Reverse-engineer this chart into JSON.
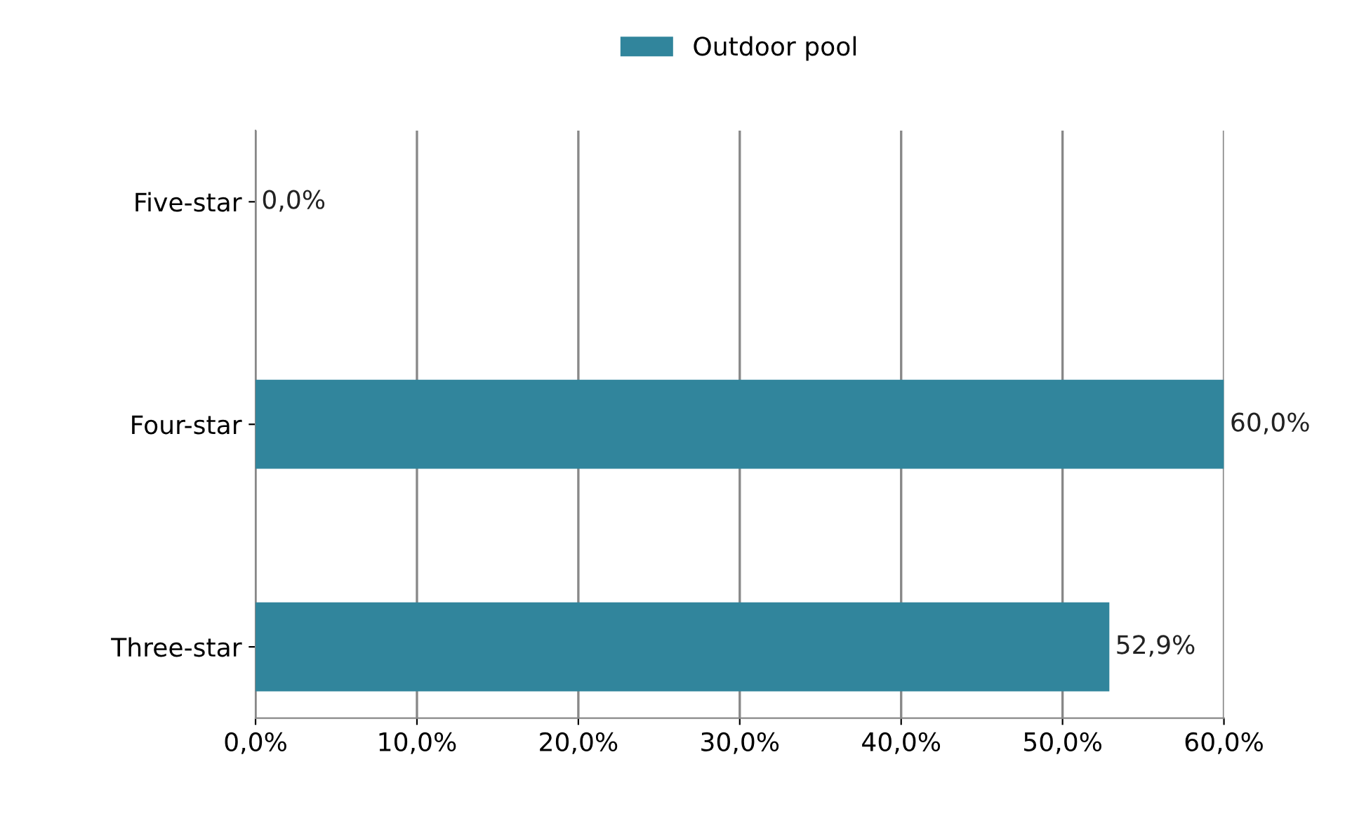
{
  "chart_data": {
    "type": "bar",
    "orientation": "horizontal",
    "categories": [
      "Five-star",
      "Four-star",
      "Three-star"
    ],
    "series": [
      {
        "name": "Outdoor pool",
        "color": "#31859c",
        "values": [
          0,
          60,
          52.9
        ],
        "value_labels": [
          "0,0%",
          "60,0%",
          "52,9%"
        ]
      }
    ],
    "xlim": [
      0,
      60
    ],
    "xticks": [
      {
        "value": 0,
        "label": "0,0%"
      },
      {
        "value": 10,
        "label": "10,0%"
      },
      {
        "value": 20,
        "label": "20,0%"
      },
      {
        "value": 30,
        "label": "30,0%"
      },
      {
        "value": 40,
        "label": "40,0%"
      },
      {
        "value": 50,
        "label": "50,0%"
      },
      {
        "value": 60,
        "label": "60,0%"
      }
    ],
    "grid": "x",
    "legend": "top"
  }
}
